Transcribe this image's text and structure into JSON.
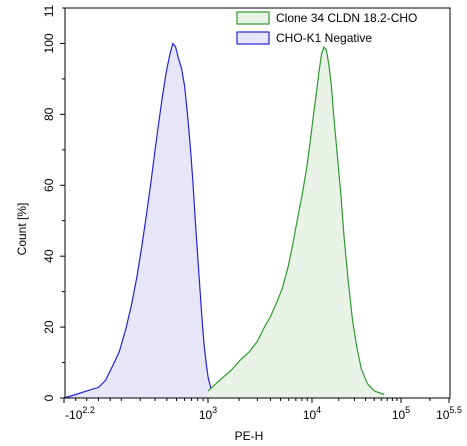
{
  "chart_data": {
    "type": "area",
    "xlabel": "PE-H",
    "ylabel": "Count [%]",
    "ylim": [
      0,
      110
    ],
    "y_ticks": [
      0,
      20,
      40,
      60,
      80,
      100
    ],
    "y_tick_labels": [
      "0",
      "20",
      "40",
      "60",
      "80",
      "100"
    ],
    "y_top_label": "11",
    "x_scale": "biexponential",
    "x_ticks": [
      {
        "label": "-10",
        "sup": "2.2"
      },
      {
        "label": "10",
        "sup": "3"
      },
      {
        "label": "10",
        "sup": "4"
      },
      {
        "label": "10",
        "sup": "5"
      },
      {
        "label": "10",
        "sup": "5.5"
      }
    ],
    "legend_position": "top-right",
    "series": [
      {
        "name": "Clone 34 CLDN 18.2-CHO",
        "color": "#2e9a2e",
        "fill": "#e8f2e6",
        "points": [
          [
            1000,
            2
          ],
          [
            1300,
            5
          ],
          [
            1700,
            8
          ],
          [
            2100,
            11
          ],
          [
            2500,
            13
          ],
          [
            3000,
            16
          ],
          [
            3500,
            20
          ],
          [
            4000,
            23
          ],
          [
            4600,
            27
          ],
          [
            5200,
            31
          ],
          [
            5900,
            37
          ],
          [
            6500,
            43
          ],
          [
            7200,
            50
          ],
          [
            8000,
            57
          ],
          [
            8800,
            64
          ],
          [
            9600,
            72
          ],
          [
            10300,
            79
          ],
          [
            11200,
            86
          ],
          [
            12000,
            92
          ],
          [
            12800,
            97
          ],
          [
            13600,
            99
          ],
          [
            14500,
            98
          ],
          [
            15500,
            94
          ],
          [
            16500,
            88
          ],
          [
            17500,
            80
          ],
          [
            19000,
            70
          ],
          [
            21000,
            58
          ],
          [
            23000,
            45
          ],
          [
            25500,
            33
          ],
          [
            28500,
            22
          ],
          [
            32000,
            14
          ],
          [
            36000,
            8
          ],
          [
            42000,
            4
          ],
          [
            50000,
            2
          ],
          [
            65000,
            1
          ]
        ]
      },
      {
        "name": "CHO-K1 Negative",
        "color": "#2323d8",
        "fill": "#e6e6f8",
        "points": [
          [
            -159,
            0
          ],
          [
            -100,
            1
          ],
          [
            -50,
            2
          ],
          [
            0,
            3
          ],
          [
            30,
            5
          ],
          [
            60,
            9
          ],
          [
            90,
            13
          ],
          [
            120,
            19
          ],
          [
            150,
            26
          ],
          [
            180,
            34
          ],
          [
            210,
            43
          ],
          [
            240,
            52
          ],
          [
            270,
            61
          ],
          [
            300,
            70
          ],
          [
            330,
            78
          ],
          [
            360,
            85
          ],
          [
            395,
            92
          ],
          [
            430,
            97
          ],
          [
            460,
            100
          ],
          [
            490,
            99
          ],
          [
            520,
            96
          ],
          [
            560,
            93
          ],
          [
            600,
            88
          ],
          [
            640,
            80
          ],
          [
            680,
            71
          ],
          [
            720,
            61
          ],
          [
            760,
            50
          ],
          [
            800,
            40
          ],
          [
            840,
            31
          ],
          [
            880,
            22
          ],
          [
            920,
            15
          ],
          [
            960,
            10
          ],
          [
            1000,
            6
          ],
          [
            1060,
            3
          ],
          [
            1150,
            1
          ],
          [
            1300,
            0
          ]
        ]
      }
    ]
  }
}
